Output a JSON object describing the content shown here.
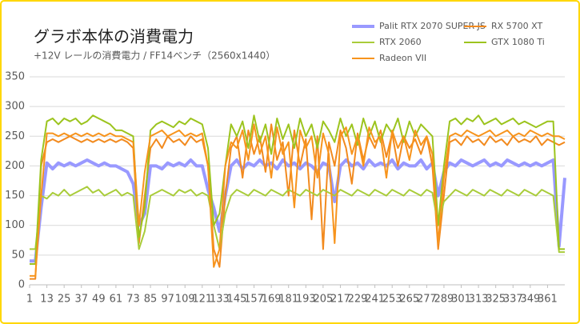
{
  "chart_data": {
    "type": "line",
    "title": "グラボ本体の消費電力",
    "subtitle": "+12V レールの消費電力 / FF14ベンチ（2560x1440）",
    "x": [
      1,
      5,
      9,
      13,
      17,
      21,
      25,
      29,
      33,
      37,
      41,
      45,
      49,
      53,
      57,
      61,
      65,
      69,
      73,
      77,
      81,
      85,
      89,
      93,
      97,
      101,
      105,
      109,
      113,
      117,
      121,
      125,
      129,
      133,
      137,
      141,
      145,
      149,
      153,
      157,
      161,
      165,
      169,
      173,
      177,
      181,
      185,
      189,
      193,
      197,
      201,
      205,
      209,
      213,
      217,
      221,
      225,
      229,
      233,
      237,
      241,
      245,
      249,
      253,
      257,
      261,
      265,
      269,
      273,
      277,
      281,
      285,
      289,
      293,
      297,
      301,
      305,
      309,
      313,
      317,
      321,
      325,
      329,
      333,
      337,
      341,
      345,
      349,
      353,
      357,
      361,
      365,
      369,
      373
    ],
    "xlim": [
      1,
      373
    ],
    "xticks": [
      1,
      13,
      25,
      37,
      49,
      61,
      73,
      85,
      97,
      109,
      121,
      133,
      145,
      157,
      169,
      181,
      193,
      205,
      217,
      229,
      241,
      253,
      265,
      277,
      289,
      301,
      313,
      325,
      337,
      349,
      361
    ],
    "ylim": [
      0,
      350
    ],
    "yticks": [
      0,
      50,
      100,
      150,
      200,
      250,
      300,
      350
    ],
    "grid": true,
    "legend": "top-right",
    "series": [
      {
        "name": "Palit RTX 2070 SUPER JS",
        "color": "#9999ff",
        "values": [
          40,
          40,
          130,
          205,
          195,
          205,
          200,
          205,
          200,
          205,
          210,
          205,
          200,
          205,
          200,
          200,
          195,
          190,
          170,
          100,
          120,
          200,
          200,
          195,
          205,
          200,
          205,
          200,
          210,
          200,
          200,
          160,
          130,
          90,
          150,
          200,
          210,
          195,
          205,
          200,
          210,
          200,
          205,
          195,
          210,
          200,
          205,
          195,
          205,
          200,
          190,
          205,
          200,
          140,
          200,
          210,
          200,
          205,
          195,
          210,
          200,
          205,
          200,
          210,
          195,
          205,
          200,
          200,
          210,
          195,
          205,
          150,
          190,
          205,
          200,
          210,
          205,
          200,
          205,
          210,
          200,
          205,
          200,
          210,
          205,
          200,
          205,
          200,
          205,
          200,
          205,
          210,
          65,
          180
        ]
      },
      {
        "name": "RX 5700 XT",
        "color": "#f28a1e",
        "values": [
          10,
          10,
          200,
          240,
          245,
          240,
          245,
          250,
          245,
          240,
          245,
          240,
          245,
          240,
          245,
          240,
          245,
          240,
          230,
          70,
          150,
          230,
          245,
          230,
          250,
          240,
          245,
          235,
          250,
          240,
          245,
          200,
          60,
          30,
          150,
          230,
          250,
          180,
          260,
          220,
          250,
          190,
          270,
          210,
          240,
          150,
          260,
          200,
          245,
          110,
          250,
          60,
          240,
          200,
          260,
          230,
          170,
          255,
          210,
          250,
          230,
          260,
          215,
          255,
          200,
          250,
          230,
          245,
          220,
          250,
          200,
          60,
          150,
          240,
          245,
          235,
          250,
          240,
          245,
          235,
          250,
          240,
          245,
          235,
          250,
          240,
          245,
          240,
          250,
          235,
          245,
          240,
          235,
          240
        ]
      },
      {
        "name": "RTX 2060",
        "color": "#a9cc3a",
        "values": [
          60,
          60,
          150,
          145,
          155,
          150,
          160,
          150,
          155,
          160,
          165,
          155,
          160,
          150,
          155,
          160,
          150,
          155,
          150,
          60,
          90,
          150,
          155,
          160,
          155,
          150,
          160,
          155,
          160,
          150,
          155,
          150,
          100,
          60,
          120,
          150,
          160,
          155,
          150,
          160,
          155,
          150,
          160,
          155,
          150,
          160,
          155,
          150,
          160,
          155,
          150,
          160,
          155,
          150,
          160,
          155,
          150,
          160,
          155,
          150,
          160,
          155,
          150,
          160,
          155,
          150,
          160,
          155,
          150,
          160,
          155,
          100,
          140,
          150,
          160,
          155,
          150,
          160,
          155,
          150,
          160,
          155,
          150,
          160,
          155,
          150,
          160,
          155,
          150,
          160,
          155,
          150,
          55,
          55
        ]
      },
      {
        "name": "GTX 1080 Ti",
        "color": "#9cc41e",
        "values": [
          35,
          35,
          210,
          275,
          280,
          270,
          280,
          275,
          280,
          270,
          275,
          285,
          280,
          275,
          270,
          260,
          260,
          255,
          250,
          80,
          130,
          260,
          270,
          275,
          270,
          265,
          275,
          270,
          280,
          275,
          270,
          230,
          100,
          120,
          200,
          270,
          250,
          275,
          230,
          285,
          240,
          270,
          220,
          280,
          245,
          270,
          230,
          280,
          250,
          270,
          230,
          275,
          260,
          240,
          280,
          250,
          270,
          235,
          280,
          250,
          275,
          240,
          270,
          255,
          280,
          240,
          275,
          250,
          270,
          260,
          250,
          100,
          200,
          275,
          280,
          270,
          280,
          275,
          285,
          270,
          275,
          280,
          270,
          275,
          280,
          270,
          275,
          270,
          265,
          270,
          275,
          275,
          60,
          60
        ]
      },
      {
        "name": "Radeon VII",
        "color": "#f7941d",
        "values": [
          15,
          15,
          150,
          255,
          255,
          250,
          255,
          250,
          255,
          250,
          255,
          250,
          255,
          250,
          255,
          250,
          250,
          245,
          240,
          100,
          190,
          250,
          255,
          260,
          250,
          255,
          260,
          250,
          255,
          250,
          255,
          200,
          30,
          60,
          200,
          240,
          230,
          260,
          210,
          270,
          220,
          250,
          180,
          265,
          220,
          240,
          130,
          260,
          230,
          250,
          180,
          255,
          220,
          70,
          250,
          265,
          220,
          250,
          200,
          265,
          240,
          250,
          180,
          260,
          230,
          250,
          210,
          260,
          235,
          250,
          220,
          70,
          180,
          250,
          255,
          250,
          260,
          255,
          250,
          255,
          260,
          250,
          255,
          260,
          250,
          255,
          250,
          260,
          255,
          250,
          255,
          250,
          250,
          245
        ]
      }
    ]
  }
}
